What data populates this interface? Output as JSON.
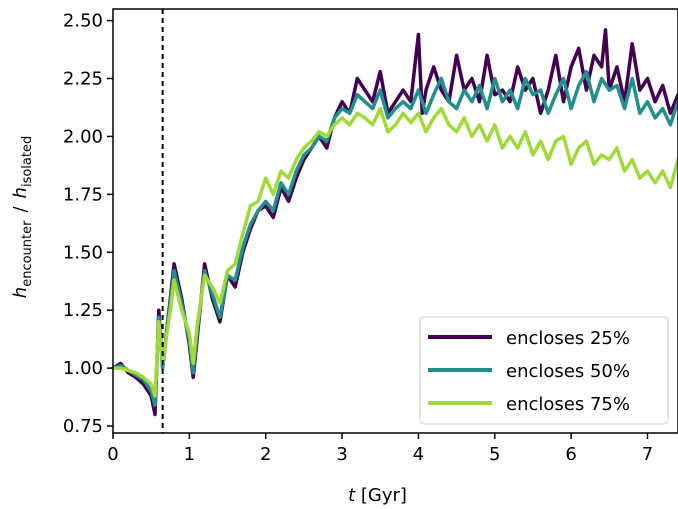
{
  "chart_data": {
    "type": "line",
    "xlabel": {
      "var": "t",
      "unit": " [Gyr]"
    },
    "ylabel": {
      "main": "h",
      "sub1": "encounter",
      "slash": "/",
      "sub2": "isolated"
    },
    "xlim": [
      0,
      7.4
    ],
    "ylim": [
      0.72,
      2.55
    ],
    "xticks": [
      0,
      1,
      2,
      3,
      4,
      5,
      6,
      7
    ],
    "xtick_labels": [
      "0",
      "1",
      "2",
      "3",
      "4",
      "5",
      "6",
      "7"
    ],
    "yticks": [
      0.75,
      1.0,
      1.25,
      1.5,
      1.75,
      2.0,
      2.25,
      2.5
    ],
    "ytick_labels": [
      "0.75",
      "1.00",
      "1.25",
      "1.50",
      "1.75",
      "2.00",
      "2.25",
      "2.50"
    ],
    "vline": {
      "x": 0.65,
      "style": "dashed",
      "color": "#000000"
    },
    "legend_position": "lower-right",
    "grid": false,
    "series": [
      {
        "name": "encloses 25%",
        "color": "#440154",
        "x": [
          0.0,
          0.1,
          0.2,
          0.3,
          0.4,
          0.5,
          0.55,
          0.6,
          0.65,
          0.75,
          0.8,
          0.9,
          1.0,
          1.05,
          1.1,
          1.2,
          1.3,
          1.4,
          1.5,
          1.6,
          1.7,
          1.8,
          1.9,
          2.0,
          2.1,
          2.2,
          2.3,
          2.4,
          2.5,
          2.6,
          2.7,
          2.8,
          2.9,
          3.0,
          3.1,
          3.2,
          3.3,
          3.4,
          3.5,
          3.6,
          3.7,
          3.8,
          3.9,
          4.0,
          4.05,
          4.1,
          4.2,
          4.3,
          4.4,
          4.5,
          4.6,
          4.7,
          4.8,
          4.9,
          5.0,
          5.1,
          5.2,
          5.3,
          5.4,
          5.5,
          5.6,
          5.7,
          5.8,
          5.9,
          6.0,
          6.1,
          6.2,
          6.3,
          6.4,
          6.45,
          6.5,
          6.6,
          6.7,
          6.8,
          6.9,
          7.0,
          7.1,
          7.2,
          7.3,
          7.4
        ],
        "y": [
          1.0,
          1.02,
          0.98,
          0.96,
          0.93,
          0.88,
          0.8,
          1.25,
          1.0,
          1.3,
          1.45,
          1.3,
          1.1,
          0.96,
          1.12,
          1.45,
          1.3,
          1.2,
          1.4,
          1.35,
          1.5,
          1.6,
          1.68,
          1.7,
          1.65,
          1.78,
          1.72,
          1.82,
          1.9,
          1.95,
          2.0,
          1.95,
          2.08,
          2.15,
          2.1,
          2.25,
          2.2,
          2.15,
          2.28,
          2.1,
          2.15,
          2.2,
          2.15,
          2.44,
          2.1,
          2.2,
          2.3,
          2.2,
          2.15,
          2.35,
          2.2,
          2.25,
          2.15,
          2.35,
          2.18,
          2.2,
          2.15,
          2.3,
          2.2,
          2.25,
          2.1,
          2.2,
          2.35,
          2.15,
          2.3,
          2.38,
          2.2,
          2.35,
          2.3,
          2.46,
          2.2,
          2.3,
          2.15,
          2.4,
          2.2,
          2.25,
          2.15,
          2.22,
          2.1,
          2.18
        ]
      },
      {
        "name": "encloses 50%",
        "color": "#21908d",
        "x": [
          0.0,
          0.1,
          0.2,
          0.3,
          0.4,
          0.5,
          0.55,
          0.6,
          0.65,
          0.75,
          0.8,
          0.9,
          1.0,
          1.05,
          1.1,
          1.2,
          1.3,
          1.4,
          1.5,
          1.6,
          1.7,
          1.8,
          1.9,
          2.0,
          2.1,
          2.2,
          2.3,
          2.4,
          2.5,
          2.6,
          2.7,
          2.8,
          2.9,
          3.0,
          3.1,
          3.2,
          3.3,
          3.4,
          3.5,
          3.6,
          3.7,
          3.8,
          3.9,
          4.0,
          4.1,
          4.2,
          4.3,
          4.4,
          4.5,
          4.6,
          4.7,
          4.8,
          4.9,
          5.0,
          5.1,
          5.2,
          5.3,
          5.4,
          5.5,
          5.6,
          5.7,
          5.8,
          5.9,
          6.0,
          6.1,
          6.2,
          6.3,
          6.4,
          6.5,
          6.6,
          6.7,
          6.8,
          6.9,
          7.0,
          7.1,
          7.2,
          7.3,
          7.4
        ],
        "y": [
          1.0,
          1.01,
          0.99,
          0.97,
          0.95,
          0.9,
          0.84,
          1.22,
          1.0,
          1.28,
          1.42,
          1.28,
          1.12,
          0.98,
          1.15,
          1.42,
          1.32,
          1.22,
          1.4,
          1.38,
          1.52,
          1.62,
          1.68,
          1.72,
          1.68,
          1.8,
          1.75,
          1.85,
          1.92,
          1.95,
          2.0,
          1.98,
          2.08,
          2.12,
          2.1,
          2.18,
          2.15,
          2.12,
          2.2,
          2.08,
          2.12,
          2.15,
          2.12,
          2.2,
          2.1,
          2.18,
          2.25,
          2.15,
          2.12,
          2.2,
          2.15,
          2.22,
          2.12,
          2.25,
          2.15,
          2.2,
          2.12,
          2.25,
          2.18,
          2.2,
          2.1,
          2.18,
          2.25,
          2.12,
          2.22,
          2.28,
          2.15,
          2.25,
          2.2,
          2.22,
          2.12,
          2.25,
          2.1,
          2.15,
          2.08,
          2.12,
          2.05,
          2.15
        ]
      },
      {
        "name": "encloses 75%",
        "color": "#a0da39",
        "x": [
          0.0,
          0.1,
          0.2,
          0.3,
          0.4,
          0.5,
          0.55,
          0.6,
          0.65,
          0.75,
          0.8,
          0.9,
          1.0,
          1.05,
          1.1,
          1.2,
          1.3,
          1.4,
          1.5,
          1.6,
          1.7,
          1.8,
          1.9,
          2.0,
          2.1,
          2.2,
          2.3,
          2.4,
          2.5,
          2.6,
          2.7,
          2.8,
          2.9,
          3.0,
          3.1,
          3.2,
          3.3,
          3.4,
          3.5,
          3.6,
          3.7,
          3.8,
          3.9,
          4.0,
          4.1,
          4.2,
          4.3,
          4.4,
          4.5,
          4.6,
          4.7,
          4.8,
          4.9,
          5.0,
          5.1,
          5.2,
          5.3,
          5.4,
          5.5,
          5.6,
          5.7,
          5.8,
          5.9,
          6.0,
          6.1,
          6.2,
          6.3,
          6.4,
          6.5,
          6.6,
          6.7,
          6.8,
          6.9,
          7.0,
          7.1,
          7.2,
          7.3,
          7.4
        ],
        "y": [
          1.0,
          1.0,
          0.99,
          0.98,
          0.96,
          0.93,
          0.88,
          1.2,
          1.02,
          1.25,
          1.38,
          1.25,
          1.15,
          1.02,
          1.18,
          1.4,
          1.35,
          1.28,
          1.42,
          1.45,
          1.58,
          1.7,
          1.72,
          1.82,
          1.75,
          1.85,
          1.82,
          1.9,
          1.95,
          1.98,
          2.02,
          2.0,
          2.05,
          2.08,
          2.05,
          2.1,
          2.08,
          2.05,
          2.12,
          2.02,
          2.05,
          2.1,
          2.06,
          2.1,
          2.02,
          2.08,
          2.12,
          2.05,
          2.02,
          2.08,
          2.0,
          2.05,
          1.98,
          2.05,
          1.95,
          2.0,
          1.95,
          2.02,
          1.92,
          1.98,
          1.9,
          1.98,
          2.0,
          1.88,
          1.95,
          1.98,
          1.88,
          1.92,
          1.9,
          1.95,
          1.85,
          1.9,
          1.82,
          1.85,
          1.8,
          1.85,
          1.78,
          1.9
        ]
      }
    ]
  }
}
